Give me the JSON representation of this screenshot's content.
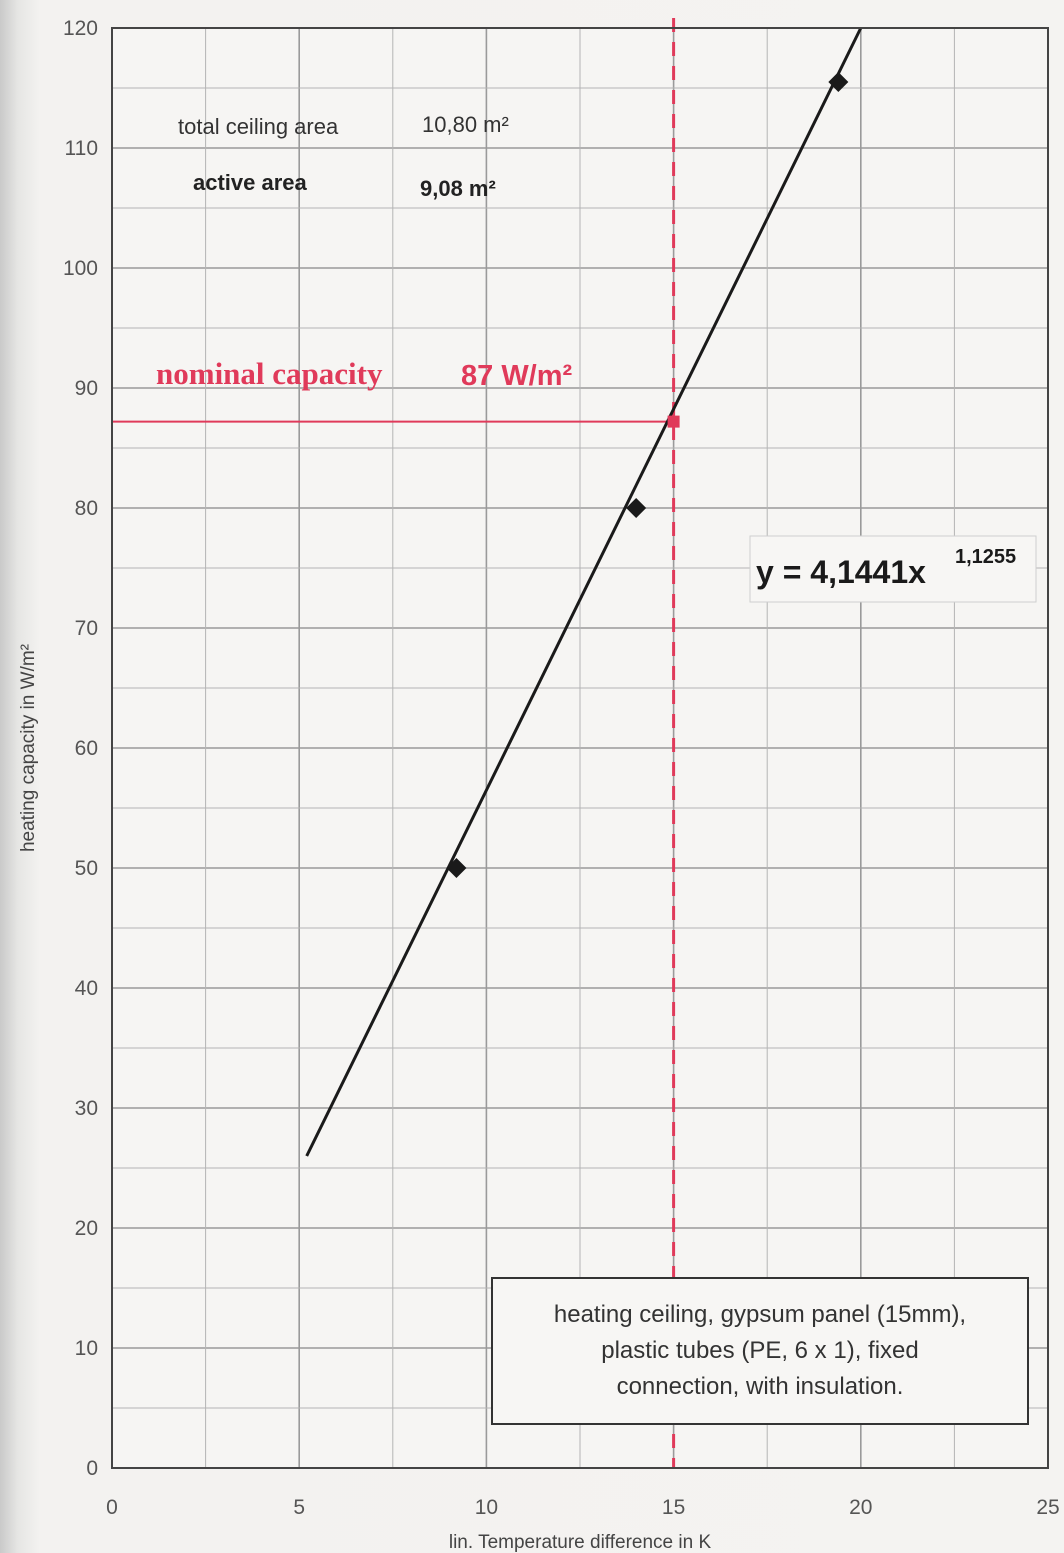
{
  "chart_data": {
    "type": "line",
    "xlabel": "lin. Temperature difference in K",
    "ylabel": "heating capacity in W/m²",
    "xlim": [
      0,
      25
    ],
    "ylim": [
      0,
      120
    ],
    "x_ticks": [
      "0",
      "5",
      "10",
      "15",
      "20",
      "25"
    ],
    "y_ticks": [
      "0",
      "10",
      "20",
      "30",
      "40",
      "50",
      "60",
      "70",
      "80",
      "90",
      "100",
      "110",
      "120"
    ],
    "grid": true,
    "series": [
      {
        "type": "measured-points",
        "marker": "diamond",
        "x": [
          9.2,
          14.0,
          19.4
        ],
        "y": [
          50,
          80,
          115.5
        ]
      },
      {
        "type": "fit-line",
        "x": [
          5.2,
          20.0
        ],
        "y": [
          26,
          120
        ]
      }
    ],
    "fit_equation": {
      "text": "y = 4,1441x",
      "exponent": "1,1255"
    },
    "nominal": {
      "label": "nominal capacity",
      "value": "87 W/m²",
      "x": 15,
      "y": 87.2,
      "color": "#e03a5a"
    },
    "info": {
      "total_label": "total ceiling area",
      "total_value": "10,80 m²",
      "active_label": "active area",
      "active_value": "9,08 m²"
    },
    "note": [
      "heating ceiling, gypsum panel (15mm),",
      "plastic tubes (PE, 6 x 1), fixed",
      "connection, with insulation."
    ]
  }
}
